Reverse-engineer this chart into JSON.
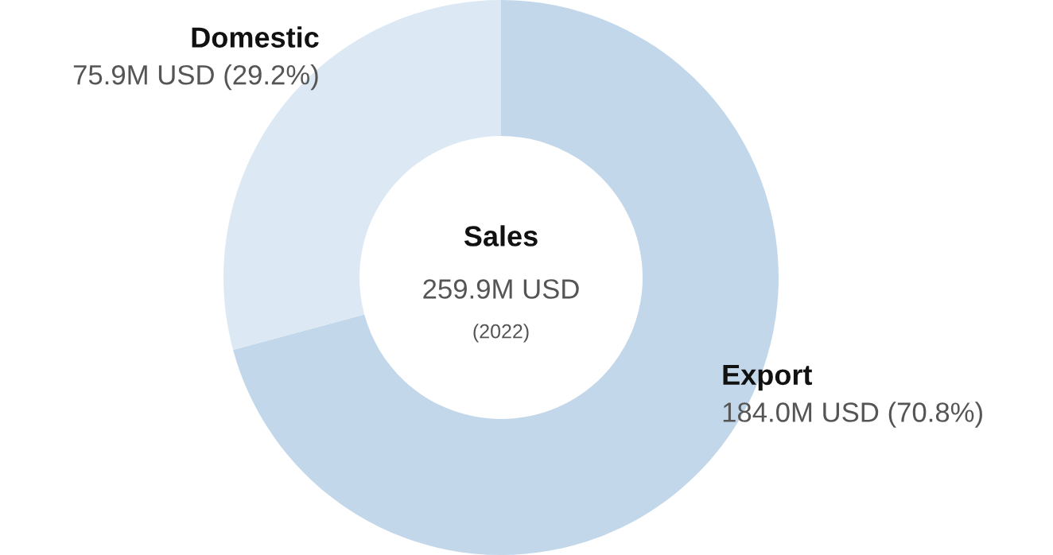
{
  "chart_data": {
    "type": "donut",
    "title": "Sales",
    "subtitle": "259.9M USD",
    "annotations": [
      "(2022)"
    ],
    "categories": [
      "Export",
      "Domestic"
    ],
    "values": [
      70.8,
      29.2
    ],
    "value_labels": [
      "184.0M USD (70.8%)",
      "75.9M USD (29.2%)"
    ],
    "colors": [
      "#c2d7ea",
      "#dce9f4"
    ],
    "legend": false
  }
}
